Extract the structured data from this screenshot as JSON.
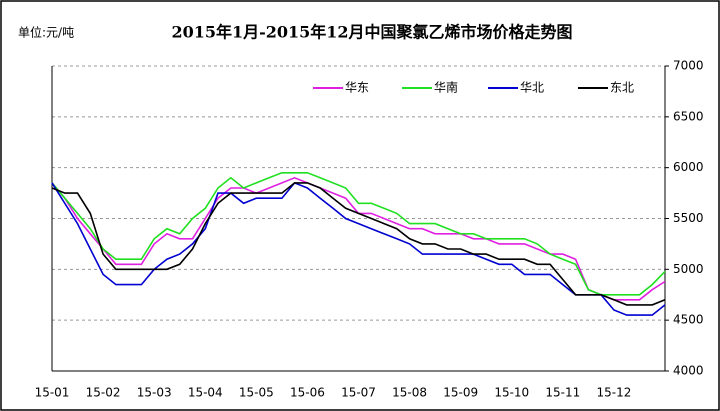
{
  "chart_data": {
    "type": "line",
    "title": "2015年1月-2015年12月中国聚氯乙烯市场价格走势图",
    "subtitle": "单位:元/吨",
    "categories": [
      "15-01",
      null,
      null,
      null,
      "15-02",
      null,
      null,
      null,
      "15-03",
      null,
      null,
      null,
      "15-04",
      null,
      null,
      null,
      "15-05",
      null,
      null,
      null,
      "15-06",
      null,
      null,
      null,
      "15-07",
      null,
      null,
      null,
      "15-08",
      null,
      null,
      null,
      "15-09",
      null,
      null,
      null,
      "15-10",
      null,
      null,
      null,
      "15-11",
      null,
      null,
      null,
      "15-12",
      null,
      null,
      null,
      null
    ],
    "series": [
      {
        "name": "华东",
        "color": "#e020e0",
        "values": [
          5850,
          5700,
          5500,
          5350,
          5200,
          5050,
          5050,
          5050,
          5250,
          5350,
          5300,
          5300,
          5500,
          5700,
          5800,
          5800,
          5750,
          5800,
          5850,
          5900,
          5850,
          5800,
          5750,
          5700,
          5550,
          5550,
          5500,
          5450,
          5400,
          5400,
          5350,
          5350,
          5350,
          5300,
          5300,
          5250,
          5250,
          5250,
          5200,
          5150,
          5150,
          5100,
          4800,
          4750,
          4700,
          4700,
          4700,
          4800,
          4880
        ]
      },
      {
        "name": "华南",
        "color": "#20e020",
        "values": [
          5850,
          5700,
          5550,
          5400,
          5200,
          5100,
          5100,
          5100,
          5300,
          5400,
          5350,
          5500,
          5600,
          5800,
          5900,
          5800,
          5850,
          5900,
          5950,
          5950,
          5950,
          5900,
          5850,
          5800,
          5650,
          5650,
          5600,
          5550,
          5450,
          5450,
          5450,
          5400,
          5350,
          5350,
          5300,
          5300,
          5300,
          5300,
          5250,
          5150,
          5100,
          5050,
          4800,
          4750,
          4750,
          4750,
          4750,
          4850,
          4980
        ]
      },
      {
        "name": "华北",
        "color": "#0000d0",
        "values": [
          5850,
          5650,
          5450,
          5200,
          4950,
          4850,
          4850,
          4850,
          5000,
          5100,
          5150,
          5250,
          5400,
          5750,
          5750,
          5650,
          5700,
          5700,
          5700,
          5850,
          5800,
          5700,
          5600,
          5500,
          5450,
          5400,
          5350,
          5300,
          5250,
          5150,
          5150,
          5150,
          5150,
          5150,
          5100,
          5050,
          5050,
          4950,
          4950,
          4950,
          4850,
          4750,
          4750,
          4750,
          4600,
          4550,
          4550,
          4550,
          4650
        ]
      },
      {
        "name": "东北",
        "color": "#000000",
        "values": [
          5800,
          5750,
          5750,
          5550,
          5150,
          5000,
          5000,
          5000,
          5000,
          5000,
          5050,
          5200,
          5450,
          5650,
          5750,
          5750,
          5750,
          5750,
          5750,
          5850,
          5850,
          5800,
          5700,
          5600,
          5550,
          5500,
          5450,
          5400,
          5300,
          5250,
          5250,
          5200,
          5200,
          5150,
          5150,
          5100,
          5100,
          5100,
          5050,
          5050,
          4900,
          4750,
          4750,
          4750,
          4700,
          4650,
          4650,
          4650,
          4700
        ]
      }
    ],
    "ylim": [
      4000,
      7000
    ],
    "yticks": [
      4000,
      4500,
      5000,
      5500,
      6000,
      6500,
      7000
    ],
    "grid": true,
    "legend": "top-right"
  }
}
